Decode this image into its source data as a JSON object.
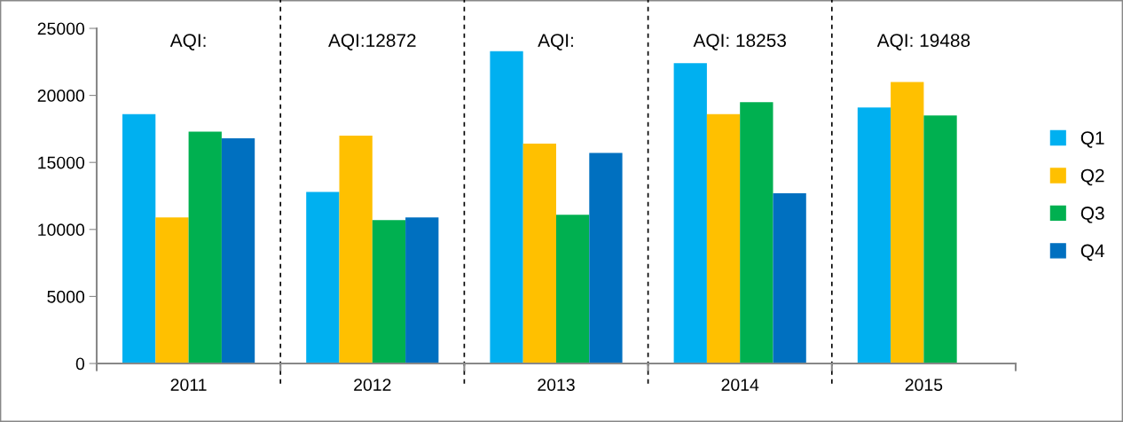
{
  "chart_data": {
    "type": "bar",
    "categories": [
      "2011",
      "2012",
      "2013",
      "2014",
      "2015"
    ],
    "series": [
      {
        "name": "Q1",
        "color": "#00b0f0",
        "values": [
          18600,
          12800,
          23300,
          22400,
          19100
        ]
      },
      {
        "name": "Q2",
        "color": "#ffc000",
        "values": [
          10900,
          17000,
          16400,
          18600,
          21000
        ]
      },
      {
        "name": "Q3",
        "color": "#00b050",
        "values": [
          17300,
          10700,
          11100,
          19500,
          18500
        ]
      },
      {
        "name": "Q4",
        "color": "#0070c0",
        "values": [
          16800,
          10900,
          15700,
          12700,
          null
        ]
      }
    ],
    "ylim": [
      0,
      25000
    ],
    "yticks": [
      0,
      5000,
      10000,
      15000,
      20000,
      25000
    ],
    "grid": "x",
    "legend": "right",
    "annotations": [
      "AQI:",
      "AQI:12872",
      "AQI:",
      "AQI: 18253",
      "AQI: 19488"
    ]
  }
}
